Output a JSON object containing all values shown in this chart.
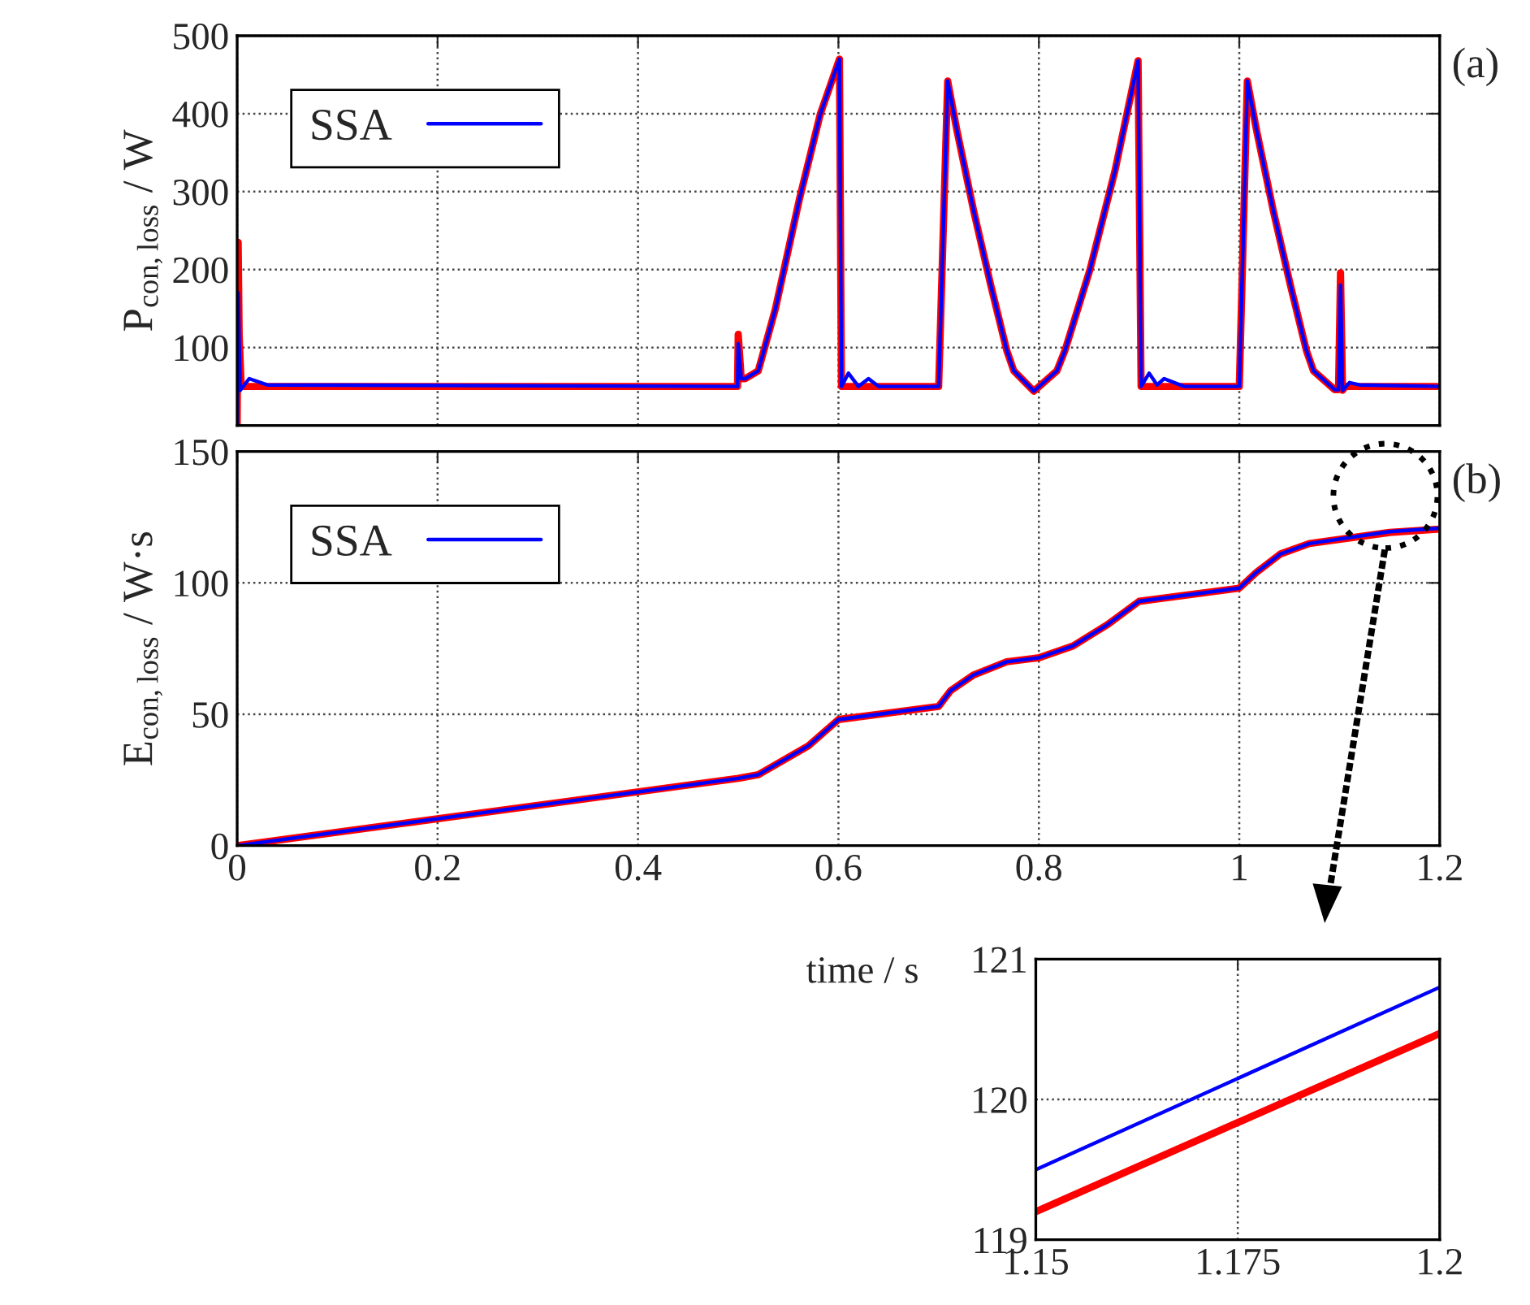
{
  "chart_data": [
    {
      "type": "line",
      "ylabel": "P$_{con,loss}$ / W",
      "annotations": [
        "(a)"
      ],
      "xlim": [
        0,
        1.2
      ],
      "xticks": [
        0,
        0.2,
        0.4,
        0.6,
        0.8,
        1,
        1.2
      ],
      "ylim": [
        0,
        500
      ],
      "yticks": [
        {
          "value": 0,
          "label": null
        },
        100,
        200,
        300,
        400,
        500
      ],
      "tick_labels": "y",
      "grid": true,
      "legend": "top left",
      "series": [
        {
          "color": "#ff0000",
          "x": [
            0,
            0.001,
            0.002,
            0.004,
            0.006,
            0.4993,
            0.5,
            0.503,
            0.507,
            0.52,
            0.537,
            0.561,
            0.582,
            0.601,
            0.603,
            0.7,
            0.709,
            0.718,
            0.735,
            0.752,
            0.768,
            0.775,
            0.795,
            0.818,
            0.826,
            0.851,
            0.876,
            0.899,
            0.902,
            1.0,
            1.008,
            1.017,
            1.034,
            1.051,
            1.067,
            1.074,
            1.095,
            1.099,
            1.101,
            1.103,
            1.106,
            1.2
          ],
          "values": [
            0,
            235,
            117,
            50,
            50,
            50,
            117,
            60,
            60,
            70,
            149,
            290,
            400,
            470,
            50,
            50,
            442,
            380,
            275,
            180,
            96,
            70,
            44,
            70,
            96,
            200,
            327,
            468,
            50,
            50,
            442,
            380,
            275,
            180,
            96,
            70,
            46,
            46,
            196,
            45,
            50,
            50
          ]
        },
        {
          "name": "SSA",
          "color": "#0000ff",
          "x": [
            0,
            0.001,
            0.003,
            0.012,
            0.03,
            0.4993,
            0.5,
            0.503,
            0.507,
            0.52,
            0.537,
            0.561,
            0.582,
            0.601,
            0.603,
            0.61,
            0.62,
            0.63,
            0.64,
            0.7,
            0.709,
            0.718,
            0.735,
            0.752,
            0.768,
            0.775,
            0.795,
            0.818,
            0.826,
            0.851,
            0.876,
            0.899,
            0.902,
            0.91,
            0.918,
            0.925,
            0.935,
            0.945,
            1.0,
            1.008,
            1.017,
            1.034,
            1.051,
            1.067,
            1.074,
            1.095,
            1.099,
            1.101,
            1.103,
            1.11,
            1.12,
            1.2
          ],
          "values": [
            0,
            170,
            45,
            60,
            52,
            50,
            105,
            60,
            60,
            70,
            149,
            290,
            400,
            470,
            50,
            67,
            50,
            60,
            50,
            50,
            442,
            380,
            275,
            180,
            96,
            70,
            44,
            70,
            96,
            200,
            327,
            468,
            50,
            67,
            52,
            60,
            55,
            50,
            50,
            442,
            380,
            275,
            180,
            96,
            70,
            46,
            46,
            180,
            45,
            55,
            52,
            50
          ]
        }
      ]
    },
    {
      "type": "line",
      "ylabel": "E$_{con,loss}$ / W·s",
      "xlabel": "time / s",
      "annotations": [
        "(b)"
      ],
      "xlim": [
        0,
        1.2
      ],
      "xticks": [
        0,
        0.2,
        0.4,
        0.6,
        0.8,
        1,
        1.2
      ],
      "ylim": [
        0,
        150
      ],
      "yticks": [
        0,
        50,
        100,
        150
      ],
      "grid": true,
      "legend": "top left",
      "series": [
        {
          "color": "#ff0000",
          "x": [
            0,
            0.5,
            0.52,
            0.57,
            0.6,
            0.7,
            0.712,
            0.735,
            0.768,
            0.8,
            0.834,
            0.868,
            0.9,
            1.0,
            1.017,
            1.041,
            1.07,
            1.15,
            1.2
          ],
          "values": [
            0,
            25.6,
            27,
            38,
            48,
            53,
            59,
            65,
            70,
            71.5,
            76,
            84,
            93,
            98,
            104,
            111,
            115,
            119.2,
            120.5
          ]
        },
        {
          "name": "SSA",
          "color": "#0000ff",
          "x": [
            0,
            0.5,
            0.52,
            0.57,
            0.6,
            0.7,
            0.712,
            0.735,
            0.768,
            0.8,
            0.834,
            0.868,
            0.9,
            1.0,
            1.017,
            1.041,
            1.07,
            1.15,
            1.2
          ],
          "values": [
            0,
            25.6,
            27,
            38,
            48,
            53,
            59,
            65,
            70,
            71.5,
            76,
            84,
            93,
            98,
            104,
            111,
            115,
            119.5,
            120.8
          ]
        }
      ]
    },
    {
      "type": "line",
      "xlim": [
        1.15,
        1.2
      ],
      "xticks": [
        1.15,
        1.175,
        1.2
      ],
      "ylim": [
        119,
        121
      ],
      "yticks": [
        119,
        120,
        121
      ],
      "grid": true,
      "series": [
        {
          "color": "#ff0000",
          "x": [
            1.15,
            1.2
          ],
          "values": [
            119.2,
            120.47
          ]
        },
        {
          "color": "#0000ff",
          "x": [
            1.15,
            1.2
          ],
          "values": [
            119.5,
            120.8
          ]
        }
      ]
    }
  ]
}
